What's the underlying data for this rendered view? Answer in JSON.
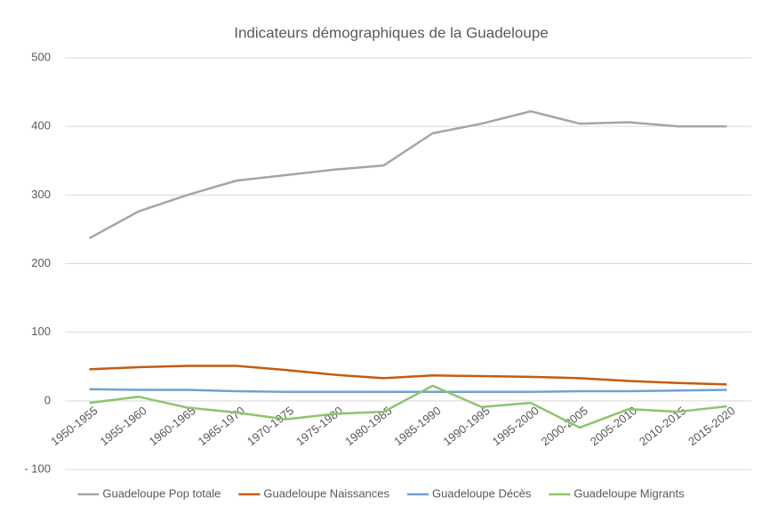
{
  "chart_data": {
    "type": "line",
    "title": "Indicateurs démographiques de la Guadeloupe",
    "categories": [
      "1950-1955",
      "1955-1960",
      "1960-1965",
      "1965-1970",
      "1970-1975",
      "1975-1980",
      "1980-1985",
      "1985-1990",
      "1990-1995",
      "1995-2000",
      "2000-2005",
      "2005-2010",
      "2010-2015",
      "2015-2020"
    ],
    "series": [
      {
        "name": "Guadeloupe Pop totale",
        "color": "#a5a5a5",
        "values": [
          237,
          276,
          300,
          321,
          329,
          337,
          343,
          390,
          404,
          422,
          404,
          406,
          400,
          400
        ]
      },
      {
        "name": "Guadeloupe Naissances",
        "color": "#c55a11",
        "values": [
          46,
          49,
          51,
          51,
          45,
          38,
          33,
          37,
          36,
          35,
          33,
          29,
          26,
          24
        ]
      },
      {
        "name": "Guadeloupe Décès",
        "color": "#6fa1d6",
        "values": [
          17,
          16,
          16,
          14,
          13,
          13,
          13,
          13,
          13,
          13,
          14,
          14,
          15,
          16
        ]
      },
      {
        "name": "Guadeloupe Migrants",
        "color": "#8cc56a",
        "values": [
          -3,
          6,
          -10,
          -17,
          -27,
          -19,
          -16,
          22,
          -9,
          -3,
          -39,
          -12,
          -16,
          -8
        ]
      }
    ],
    "ylim": [
      -100,
      500
    ],
    "yticks": [
      {
        "value": -100,
        "label": "- 100"
      },
      0,
      100,
      200,
      300,
      400,
      500
    ],
    "grid": true,
    "legend": "bottom"
  }
}
